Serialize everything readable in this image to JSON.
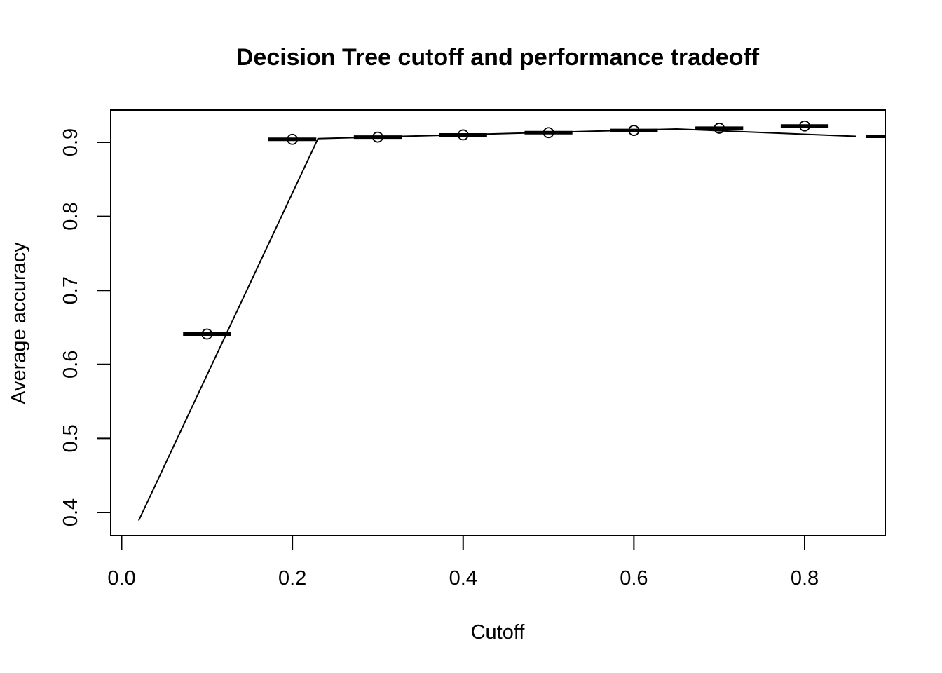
{
  "chart_data": {
    "type": "line",
    "title": "Decision Tree cutoff and performance tradeoff",
    "xlabel": "Cutoff",
    "ylabel": "Average accuracy",
    "xlim": [
      0.0,
      0.9
    ],
    "ylim": [
      0.37,
      0.945
    ],
    "x_ticks": [
      0.0,
      0.2,
      0.4,
      0.6,
      0.8
    ],
    "x_tick_labels": [
      "0.0",
      "0.2",
      "0.4",
      "0.6",
      "0.8"
    ],
    "y_ticks": [
      0.4,
      0.5,
      0.6,
      0.7,
      0.8,
      0.9
    ],
    "y_tick_labels": [
      "0.4",
      "0.5",
      "0.6",
      "0.7",
      "0.8",
      "0.9"
    ],
    "grid": false,
    "series": [
      {
        "style": "line",
        "x": [
          0.02,
          0.23,
          0.65,
          0.86
        ],
        "y": [
          0.389,
          0.905,
          0.918,
          0.908
        ]
      },
      {
        "style": "points",
        "x": [
          0.1,
          0.2,
          0.3,
          0.4,
          0.5,
          0.6,
          0.7,
          0.8
        ],
        "y": [
          0.641,
          0.904,
          0.907,
          0.91,
          0.913,
          0.916,
          0.919,
          0.922
        ]
      },
      {
        "style": "bars",
        "x": [
          0.1,
          0.2,
          0.3,
          0.4,
          0.5,
          0.6,
          0.7,
          0.8,
          0.9
        ],
        "y": [
          0.641,
          0.904,
          0.907,
          0.91,
          0.913,
          0.916,
          0.919,
          0.922,
          0.908
        ],
        "halfwidth": 0.028
      }
    ]
  }
}
